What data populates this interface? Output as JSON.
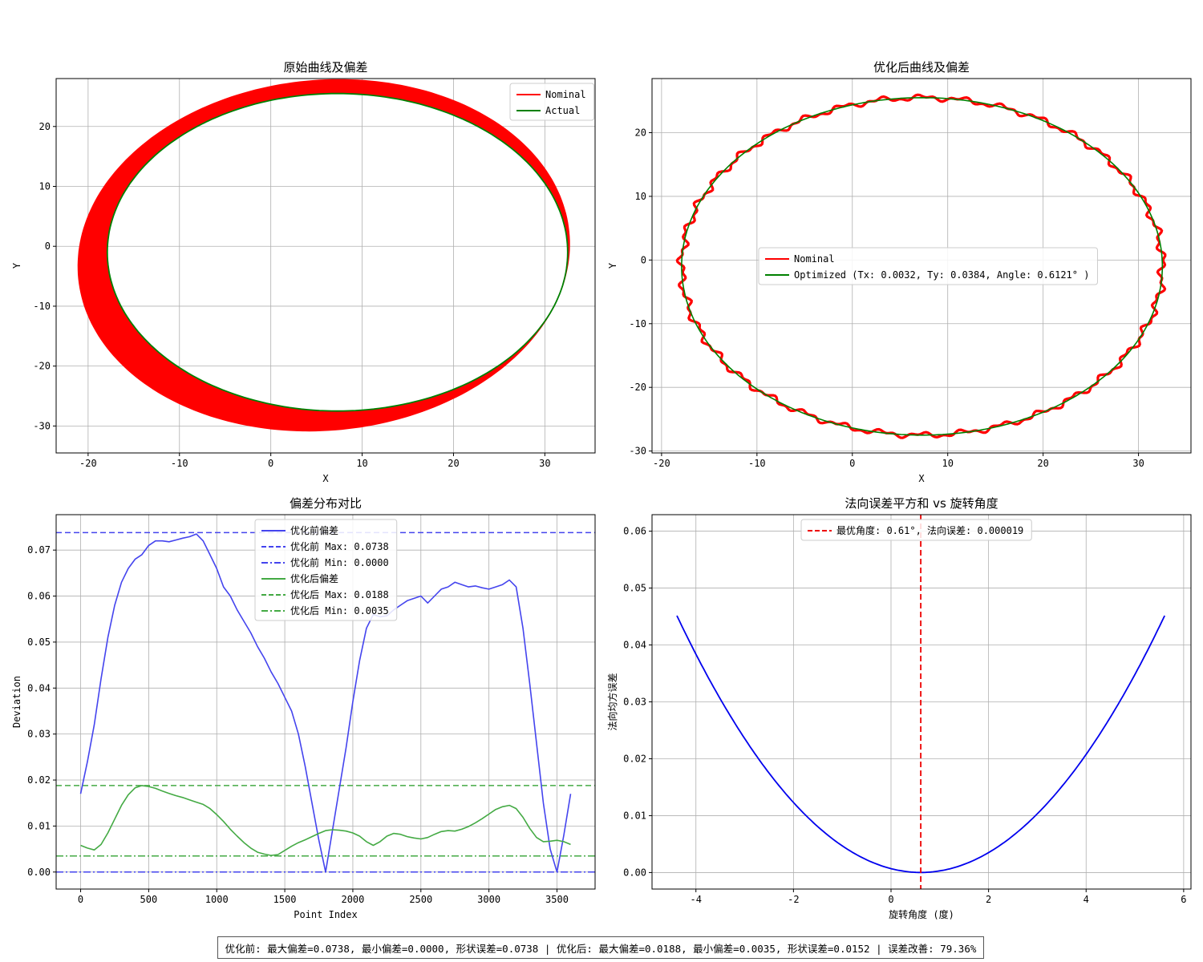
{
  "summary": "优化前: 最大偏差=0.0738, 最小偏差=0.0000, 形状误差=0.0738 | 优化后: 最大偏差=0.0188, 最小偏差=0.0035, 形状误差=0.0152 | 误差改善: 79.36%",
  "chart_data": [
    {
      "id": "original",
      "type": "line",
      "title": "原始曲线及偏差",
      "xlabel": "X",
      "ylabel": "Y",
      "xlim": [
        -23.5,
        35.5
      ],
      "ylim": [
        -34.5,
        28.0
      ],
      "xticks": [
        -20,
        -10,
        0,
        10,
        20,
        30
      ],
      "yticks": [
        -30,
        -20,
        -10,
        0,
        10,
        20
      ],
      "grid": true,
      "legend": "top-right",
      "actual_ellipse": {
        "cx": 7.3,
        "cy": -1.0,
        "rx": 25.2,
        "ry": 26.5
      },
      "nominal_ellipse": {
        "cx": 5.8,
        "cy": -1.5,
        "rx": 26.6,
        "ry": 29.6,
        "rot_deg": -18
      },
      "series": [
        {
          "name": "Nominal",
          "color": "#ff0000"
        },
        {
          "name": "Actual",
          "color": "#008000"
        }
      ]
    },
    {
      "id": "optimized",
      "type": "line",
      "title": "优化后曲线及偏差",
      "xlabel": "X",
      "ylabel": "Y",
      "xlim": [
        -21.0,
        35.5
      ],
      "ylim": [
        -30.3,
        28.5
      ],
      "xticks": [
        -20,
        -10,
        0,
        10,
        20,
        30
      ],
      "yticks": [
        -30,
        -20,
        -10,
        0,
        10,
        20
      ],
      "grid": true,
      "legend": "center",
      "ellipse": {
        "cx": 7.3,
        "cy": -1.0,
        "rx": 25.2,
        "ry": 26.5
      },
      "series": [
        {
          "name": "Nominal",
          "color": "#ff0000"
        },
        {
          "name": "Optimized (Tx: 0.0032, Ty: 0.0384, Angle: 0.6121° )",
          "color": "#008000"
        }
      ]
    },
    {
      "id": "deviation",
      "type": "line",
      "title": "偏差分布对比",
      "xlabel": "Point Index",
      "ylabel": "Deviation",
      "xlim": [
        -180,
        3780
      ],
      "ylim": [
        -0.0037,
        0.0777
      ],
      "xticks": [
        0,
        500,
        1000,
        1500,
        2000,
        2500,
        3000,
        3500
      ],
      "yticks": [
        0.0,
        0.01,
        0.02,
        0.03,
        0.04,
        0.05,
        0.06,
        0.07
      ],
      "grid": true,
      "legend": "top-center",
      "before": {
        "name": "优化前偏差",
        "color": "#4444ee",
        "x": [
          0,
          50,
          100,
          150,
          200,
          250,
          300,
          350,
          400,
          450,
          500,
          550,
          600,
          650,
          700,
          750,
          800,
          850,
          900,
          950,
          1000,
          1050,
          1100,
          1150,
          1200,
          1250,
          1300,
          1350,
          1400,
          1450,
          1500,
          1550,
          1600,
          1650,
          1700,
          1750,
          1800,
          1850,
          1900,
          1950,
          2000,
          2050,
          2100,
          2150,
          2200,
          2250,
          2300,
          2350,
          2400,
          2450,
          2500,
          2550,
          2600,
          2650,
          2700,
          2750,
          2800,
          2850,
          2900,
          2950,
          3000,
          3050,
          3100,
          3150,
          3200,
          3250,
          3300,
          3350,
          3400,
          3450,
          3500,
          3550,
          3600
        ],
        "y": [
          0.017,
          0.024,
          0.032,
          0.042,
          0.051,
          0.058,
          0.063,
          0.066,
          0.068,
          0.069,
          0.071,
          0.072,
          0.072,
          0.0718,
          0.0722,
          0.0726,
          0.0729,
          0.0735,
          0.072,
          0.069,
          0.066,
          0.062,
          0.06,
          0.057,
          0.0545,
          0.052,
          0.049,
          0.0465,
          0.0435,
          0.041,
          0.038,
          0.035,
          0.03,
          0.023,
          0.015,
          0.007,
          0.0,
          0.009,
          0.018,
          0.027,
          0.037,
          0.046,
          0.053,
          0.056,
          0.0555,
          0.0557,
          0.057,
          0.058,
          0.059,
          0.0595,
          0.06,
          0.0585,
          0.06,
          0.0615,
          0.062,
          0.063,
          0.0625,
          0.062,
          0.0622,
          0.0618,
          0.0615,
          0.062,
          0.0625,
          0.0635,
          0.062,
          0.053,
          0.041,
          0.028,
          0.015,
          0.005,
          0.0,
          0.008,
          0.017
        ]
      },
      "after": {
        "name": "优化后偏差",
        "color": "#44aa44",
        "x": [
          0,
          50,
          100,
          150,
          200,
          250,
          300,
          350,
          400,
          450,
          500,
          550,
          600,
          650,
          700,
          750,
          800,
          850,
          900,
          950,
          1000,
          1050,
          1100,
          1150,
          1200,
          1250,
          1300,
          1350,
          1400,
          1450,
          1500,
          1550,
          1600,
          1650,
          1700,
          1750,
          1800,
          1850,
          1900,
          1950,
          2000,
          2050,
          2100,
          2150,
          2200,
          2250,
          2300,
          2350,
          2400,
          2450,
          2500,
          2550,
          2600,
          2650,
          2700,
          2750,
          2800,
          2850,
          2900,
          2950,
          3000,
          3050,
          3100,
          3150,
          3200,
          3250,
          3300,
          3350,
          3400,
          3450,
          3500,
          3550,
          3600
        ],
        "y": [
          0.0058,
          0.0052,
          0.0048,
          0.006,
          0.0085,
          0.0115,
          0.0145,
          0.0168,
          0.0183,
          0.0188,
          0.0186,
          0.0182,
          0.0176,
          0.0171,
          0.0166,
          0.0162,
          0.0157,
          0.0152,
          0.0147,
          0.0138,
          0.0125,
          0.011,
          0.0093,
          0.0078,
          0.0064,
          0.0052,
          0.0043,
          0.0039,
          0.0036,
          0.0038,
          0.0047,
          0.0056,
          0.0064,
          0.007,
          0.0077,
          0.0084,
          0.009,
          0.0092,
          0.0091,
          0.0089,
          0.0085,
          0.0078,
          0.0066,
          0.0058,
          0.0066,
          0.0078,
          0.0084,
          0.0082,
          0.0077,
          0.0074,
          0.0072,
          0.0075,
          0.0082,
          0.0088,
          0.009,
          0.0089,
          0.0093,
          0.0099,
          0.0107,
          0.0116,
          0.0126,
          0.0136,
          0.0142,
          0.0145,
          0.0138,
          0.0119,
          0.0095,
          0.0075,
          0.0066,
          0.0067,
          0.0069,
          0.0066,
          0.006
        ]
      },
      "hlines": [
        {
          "name": "优化前 Max: 0.0738",
          "value": 0.0738,
          "color": "#4444ee",
          "style": "dashed"
        },
        {
          "name": "优化前 Min: 0.0000",
          "value": 0.0,
          "color": "#4444ee",
          "style": "dashdot"
        },
        {
          "name": "优化后 Max: 0.0188",
          "value": 0.0188,
          "color": "#44aa44",
          "style": "dashed"
        },
        {
          "name": "优化后 Min: 0.0035",
          "value": 0.0035,
          "color": "#44aa44",
          "style": "dashdot"
        }
      ]
    },
    {
      "id": "rotation",
      "type": "line",
      "title": "法向误差平方和 vs 旋转角度",
      "xlabel": "旋转角度 (度)",
      "ylabel": "法向均方误差",
      "xlim": [
        -4.9,
        6.15
      ],
      "ylim": [
        -0.0029,
        0.0629
      ],
      "xticks": [
        -4,
        -2,
        0,
        2,
        4,
        6
      ],
      "yticks": [
        0.0,
        0.01,
        0.02,
        0.03,
        0.04,
        0.05,
        0.06
      ],
      "grid": true,
      "legend": "top-center",
      "curve": {
        "color": "#0000ee",
        "x_min": -4.39,
        "x_max": 5.61,
        "vertex_x": 0.61,
        "vertex_y": 1.9e-05,
        "coef": 0.001805
      },
      "vline": {
        "name": "最优角度: 0.61°, 法向误差: 0.000019",
        "value": 0.61,
        "color": "#ee0000"
      }
    }
  ]
}
